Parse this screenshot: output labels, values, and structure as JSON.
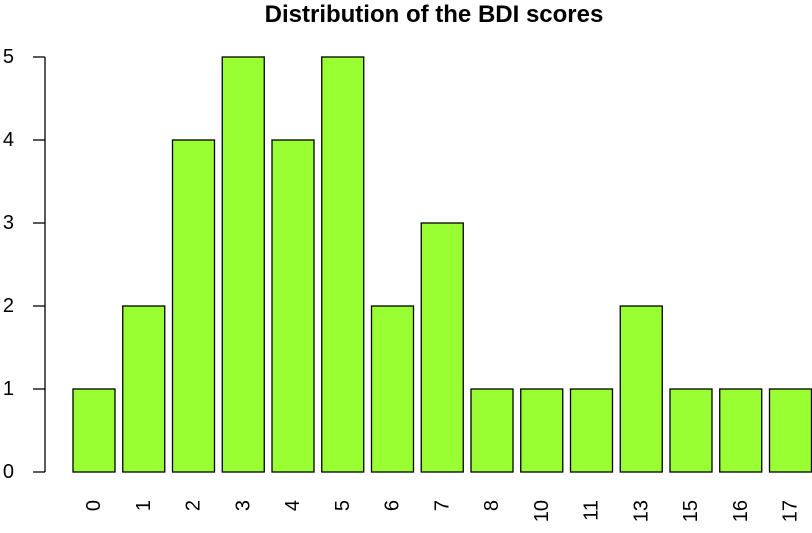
{
  "chart_data": {
    "type": "bar",
    "title": "Distribution of the BDI scores",
    "xlabel": "",
    "ylabel": "",
    "categories": [
      "0",
      "1",
      "2",
      "3",
      "4",
      "5",
      "6",
      "7",
      "8",
      "10",
      "11",
      "13",
      "15",
      "16",
      "17"
    ],
    "values": [
      1,
      2,
      4,
      5,
      4,
      5,
      2,
      3,
      1,
      1,
      1,
      2,
      1,
      1,
      1
    ],
    "ylim": [
      0,
      5
    ],
    "yticks": [
      "0",
      "1",
      "2",
      "3",
      "4",
      "5"
    ],
    "bar_color": "#99ff33",
    "grid": false,
    "legend": "none"
  }
}
